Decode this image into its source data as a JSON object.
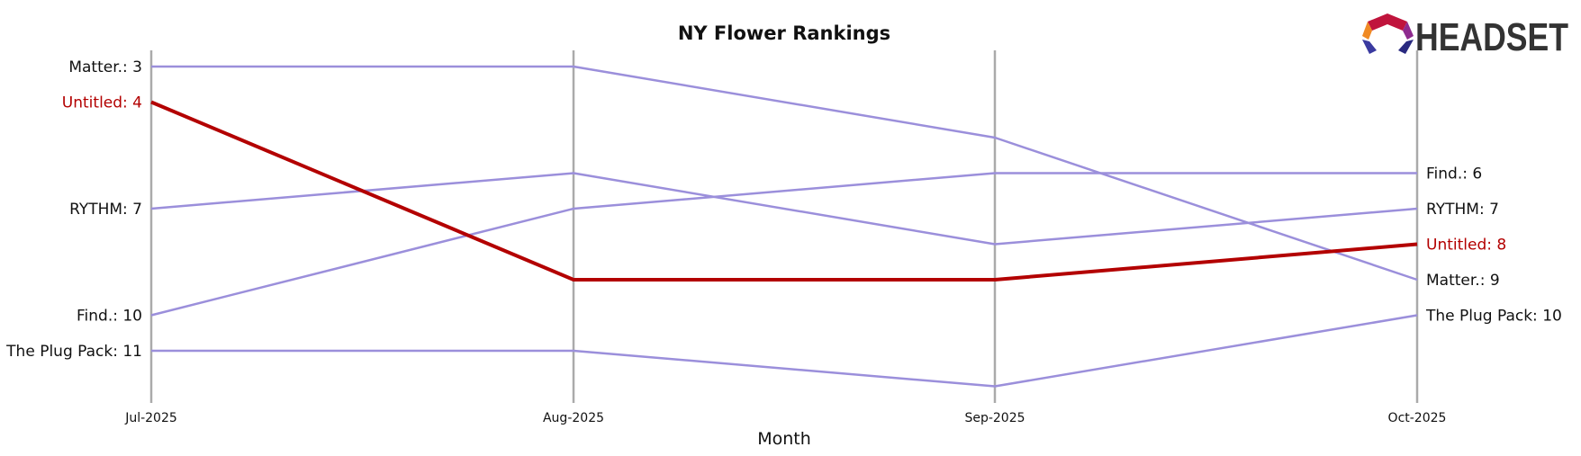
{
  "chart_data": {
    "type": "line",
    "title": "NY Flower Rankings",
    "xlabel": "Month",
    "ylabel": "",
    "x": [
      "Jul-2025",
      "Aug-2025",
      "Sep-2025",
      "Oct-2025"
    ],
    "y_inverted": true,
    "ylim": [
      12,
      2
    ],
    "highlight": "Untitled",
    "colors": {
      "highlight": "#b30000",
      "others": "#9b8fdb",
      "axis": "#aaaaaa"
    },
    "series": [
      {
        "name": "Matter.",
        "values": [
          3,
          3,
          5,
          9
        ],
        "start_label": "Matter.: 3",
        "end_label": "Matter.: 9"
      },
      {
        "name": "Untitled",
        "values": [
          4,
          9,
          9,
          8
        ],
        "start_label": "Untitled: 4",
        "end_label": "Untitled: 8"
      },
      {
        "name": "RYTHM",
        "values": [
          7,
          6,
          8,
          7
        ],
        "start_label": "RYTHM: 7",
        "end_label": "RYTHM: 7"
      },
      {
        "name": "Find.",
        "values": [
          10,
          7,
          6,
          6
        ],
        "start_label": "Find.: 10",
        "end_label": "Find.: 6"
      },
      {
        "name": "The Plug Pack",
        "values": [
          11,
          11,
          12,
          10
        ],
        "start_label": "The Plug Pack: 11",
        "end_label": "The Plug Pack: 10"
      }
    ]
  },
  "logo": {
    "text": "HEADSET",
    "icon": "headset-logo-icon"
  }
}
